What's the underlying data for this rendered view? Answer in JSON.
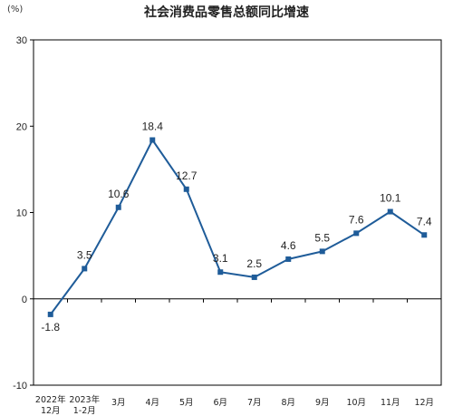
{
  "chart_data": {
    "type": "line",
    "title": "社会消费品零售总额同比增速",
    "unit": "(%)",
    "categories": [
      [
        "2022年",
        "12月"
      ],
      [
        "2023年",
        "1-2月"
      ],
      [
        "3月"
      ],
      [
        "4月"
      ],
      [
        "5月"
      ],
      [
        "6月"
      ],
      [
        "7月"
      ],
      [
        "8月"
      ],
      [
        "9月"
      ],
      [
        "10月"
      ],
      [
        "11月"
      ],
      [
        "12月"
      ]
    ],
    "values": [
      -1.8,
      3.5,
      10.6,
      18.4,
      12.7,
      3.1,
      2.5,
      4.6,
      5.5,
      7.6,
      10.1,
      7.4
    ],
    "data_labels": [
      "-1.8",
      "3.5",
      "10.6",
      "18.4",
      "12.7",
      "3.1",
      "2.5",
      "4.6",
      "5.5",
      "7.6",
      "10.1",
      "7.4"
    ],
    "ylim": [
      -10,
      30
    ],
    "yticks": [
      -10,
      0,
      10,
      20,
      30
    ],
    "xlabel": "",
    "ylabel": "",
    "grid": false,
    "legend": "none",
    "line_color": "#1f5c99",
    "marker_color": "#1f5c99"
  }
}
